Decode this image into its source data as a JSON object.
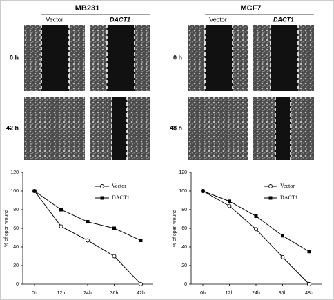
{
  "panels": [
    {
      "title": "MB231",
      "columns": [
        "Vector",
        "DACT1"
      ],
      "rows": [
        "0 h",
        "42 h"
      ]
    },
    {
      "title": "MCF7",
      "columns": [
        "Vector",
        "DACT1"
      ],
      "rows": [
        "0 h",
        "48 h"
      ]
    }
  ],
  "chart_data": [
    {
      "type": "line",
      "categories": [
        "0h",
        "12h",
        "24h",
        "36h",
        "42h"
      ],
      "y_label": "% of open wound",
      "series": [
        {
          "name": "Vector",
          "color": "#000000",
          "marker": "open-circle",
          "values": [
            100,
            62,
            47,
            30,
            0
          ]
        },
        {
          "name": "DACT1",
          "color": "#000000",
          "marker": "square",
          "values": [
            100,
            80,
            67,
            60,
            47
          ]
        }
      ],
      "ylim": [
        0,
        120
      ],
      "yticks": [
        0,
        20,
        40,
        60,
        80,
        100,
        120
      ],
      "legend": "upper right"
    },
    {
      "type": "line",
      "categories": [
        "0h",
        "12h",
        "24h",
        "36h",
        "48h"
      ],
      "y_label": "% of open wound",
      "series": [
        {
          "name": "Vector",
          "color": "#000000",
          "marker": "open-circle",
          "values": [
            100,
            84,
            59,
            29,
            0
          ]
        },
        {
          "name": "DACT1",
          "color": "#000000",
          "marker": "square",
          "values": [
            100,
            89,
            73,
            52,
            35
          ]
        }
      ],
      "ylim": [
        0,
        120
      ],
      "yticks": [
        0,
        20,
        40,
        60,
        80,
        100,
        120
      ],
      "legend": "upper right"
    }
  ]
}
